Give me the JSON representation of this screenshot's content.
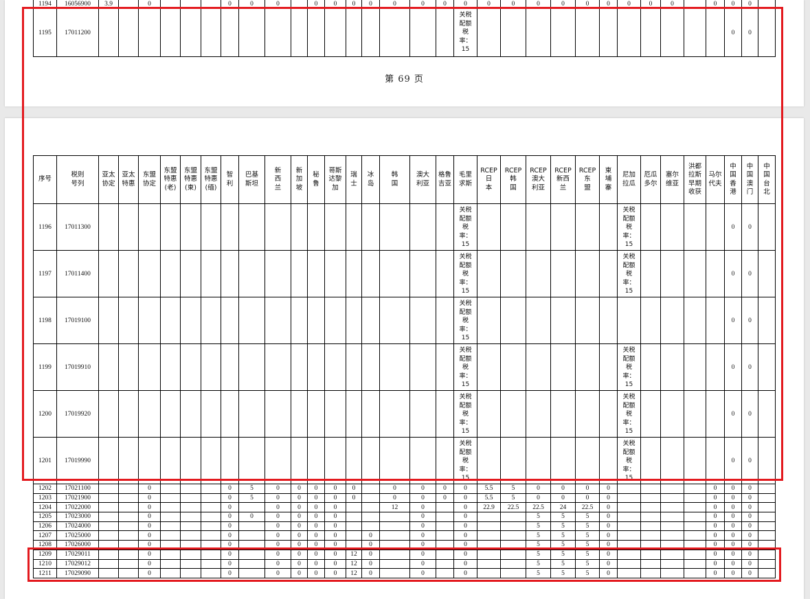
{
  "page_footer": "第 69 页",
  "columns": [
    "序号",
    "税则\n号列",
    "亚太\n协定",
    "亚太\n特惠",
    "东盟\n协定",
    "东盟\n特惠\n(老)",
    "东盟\n特惠\n(柬)",
    "东盟\n特惠\n(缅)",
    "智\n利",
    "巴基\n斯坦",
    "新\n西\n兰",
    "新\n加\n坡",
    "秘\n鲁",
    "哥斯\n达黎\n加",
    "瑞\n士",
    "冰\n岛",
    "韩\n国",
    "澳大\n利亚",
    "格鲁\n吉亚",
    "毛里\n求斯",
    "RCEP\n日\n本",
    "RCEP\n韩\n国",
    "RCEP\n澳大\n利亚",
    "RCEP\n新西\n兰",
    "RCEP\n东\n盟",
    "柬\n埔\n寨",
    "尼加\n拉瓜",
    "厄瓜\n多尔",
    "塞尔\n维亚",
    "洪都\n拉斯\n早期\n收获",
    "马尔\n代夫",
    "中\n国\n香\n港",
    "中\n国\n澳\n门",
    "中\n国\n台\n北"
  ],
  "page1_rows": [
    [
      "1194",
      "16056900",
      "3.9",
      "",
      "0",
      "",
      "",
      "",
      "0",
      "0",
      "0",
      "",
      "0",
      "0",
      "0",
      "0",
      "0",
      "0",
      "0",
      "0",
      "0",
      "0",
      "0",
      "0",
      "0",
      "0",
      "0",
      "0",
      "0",
      "",
      "0",
      "0",
      "0",
      ""
    ],
    [
      "1195",
      "17011200",
      "",
      "",
      "",
      "",
      "",
      "",
      "",
      "",
      "",
      "",
      "",
      "",
      "",
      "",
      "",
      "",
      "",
      "关税\n配额\n税\n率：\n15",
      "",
      "",
      "",
      "",
      "",
      "",
      "",
      "",
      "",
      "",
      "",
      "0",
      "0",
      ""
    ]
  ],
  "page2_rows": [
    [
      "1196",
      "17011300",
      "",
      "",
      "",
      "",
      "",
      "",
      "",
      "",
      "",
      "",
      "",
      "",
      "",
      "",
      "",
      "",
      "",
      "关税\n配额\n税\n率：\n15",
      "",
      "",
      "",
      "",
      "",
      "",
      "关税\n配额\n税\n率：\n15",
      "",
      "",
      "",
      "",
      "0",
      "0",
      ""
    ],
    [
      "1197",
      "17011400",
      "",
      "",
      "",
      "",
      "",
      "",
      "",
      "",
      "",
      "",
      "",
      "",
      "",
      "",
      "",
      "",
      "",
      "关税\n配额\n税\n率：\n15",
      "",
      "",
      "",
      "",
      "",
      "",
      "关税\n配额\n税\n率：\n15",
      "",
      "",
      "",
      "",
      "0",
      "0",
      ""
    ],
    [
      "1198",
      "17019100",
      "",
      "",
      "",
      "",
      "",
      "",
      "",
      "",
      "",
      "",
      "",
      "",
      "",
      "",
      "",
      "",
      "",
      "关税\n配额\n税\n率：\n15",
      "",
      "",
      "",
      "",
      "",
      "",
      "",
      "",
      "",
      "",
      "",
      "0",
      "0",
      ""
    ],
    [
      "1199",
      "17019910",
      "",
      "",
      "",
      "",
      "",
      "",
      "",
      "",
      "",
      "",
      "",
      "",
      "",
      "",
      "",
      "",
      "",
      "关税\n配额\n税\n率：\n15",
      "",
      "",
      "",
      "",
      "",
      "",
      "关税\n配额\n税\n率：\n15",
      "",
      "",
      "",
      "",
      "0",
      "0",
      ""
    ],
    [
      "1200",
      "17019920",
      "",
      "",
      "",
      "",
      "",
      "",
      "",
      "",
      "",
      "",
      "",
      "",
      "",
      "",
      "",
      "",
      "",
      "关税\n配额\n税\n率：\n15",
      "",
      "",
      "",
      "",
      "",
      "",
      "关税\n配额\n税\n率：\n15",
      "",
      "",
      "",
      "",
      "0",
      "0",
      ""
    ],
    [
      "1201",
      "17019990",
      "",
      "",
      "",
      "",
      "",
      "",
      "",
      "",
      "",
      "",
      "",
      "",
      "",
      "",
      "",
      "",
      "",
      "关税\n配额\n税\n率：\n15",
      "",
      "",
      "",
      "",
      "",
      "",
      "关税\n配额\n税\n率：\n15",
      "",
      "",
      "",
      "",
      "0",
      "0",
      ""
    ],
    [
      "1202",
      "17021100",
      "",
      "",
      "0",
      "",
      "",
      "",
      "0",
      "5",
      "0",
      "0",
      "0",
      "0",
      "0",
      "",
      "0",
      "0",
      "0",
      "0",
      "5.5",
      "5",
      "0",
      "0",
      "0",
      "0",
      "",
      "",
      "",
      "",
      "0",
      "0",
      "0",
      ""
    ],
    [
      "1203",
      "17021900",
      "",
      "",
      "0",
      "",
      "",
      "",
      "0",
      "5",
      "0",
      "0",
      "0",
      "0",
      "0",
      "",
      "0",
      "0",
      "0",
      "0",
      "5.5",
      "5",
      "0",
      "0",
      "0",
      "0",
      "",
      "",
      "",
      "",
      "0",
      "0",
      "0",
      ""
    ],
    [
      "1204",
      "17022000",
      "",
      "",
      "0",
      "",
      "",
      "",
      "0",
      "",
      "0",
      "0",
      "0",
      "0",
      "",
      "",
      "12",
      "0",
      "",
      "0",
      "22.9",
      "22.5",
      "22.5",
      "24",
      "22.5",
      "0",
      "",
      "",
      "",
      "",
      "0",
      "0",
      "0",
      ""
    ],
    [
      "1205",
      "17023000",
      "",
      "",
      "0",
      "",
      "",
      "",
      "0",
      "0",
      "0",
      "0",
      "0",
      "0",
      "",
      "",
      "",
      "0",
      "",
      "0",
      "",
      "",
      "5",
      "5",
      "5",
      "0",
      "",
      "",
      "",
      "",
      "0",
      "0",
      "0",
      ""
    ],
    [
      "1206",
      "17024000",
      "",
      "",
      "0",
      "",
      "",
      "",
      "0",
      "",
      "0",
      "0",
      "0",
      "0",
      "",
      "",
      "",
      "0",
      "",
      "0",
      "",
      "",
      "5",
      "5",
      "5",
      "0",
      "",
      "",
      "",
      "",
      "0",
      "0",
      "0",
      ""
    ],
    [
      "1207",
      "17025000",
      "",
      "",
      "0",
      "",
      "",
      "",
      "0",
      "",
      "0",
      "0",
      "0",
      "0",
      "",
      "0",
      "",
      "0",
      "",
      "0",
      "",
      "",
      "5",
      "5",
      "5",
      "0",
      "",
      "",
      "",
      "",
      "0",
      "0",
      "0",
      ""
    ],
    [
      "1208",
      "17026000",
      "",
      "",
      "0",
      "",
      "",
      "",
      "0",
      "",
      "0",
      "0",
      "0",
      "0",
      "",
      "0",
      "",
      "0",
      "",
      "0",
      "",
      "",
      "5",
      "5",
      "5",
      "0",
      "",
      "",
      "",
      "",
      "0",
      "0",
      "0",
      ""
    ],
    [
      "1209",
      "17029011",
      "",
      "",
      "0",
      "",
      "",
      "",
      "0",
      "",
      "0",
      "0",
      "0",
      "0",
      "12",
      "0",
      "",
      "0",
      "",
      "0",
      "",
      "",
      "5",
      "5",
      "5",
      "0",
      "",
      "",
      "",
      "",
      "0",
      "0",
      "0",
      ""
    ],
    [
      "1210",
      "17029012",
      "",
      "",
      "0",
      "",
      "",
      "",
      "0",
      "",
      "0",
      "0",
      "0",
      "0",
      "12",
      "0",
      "",
      "0",
      "",
      "0",
      "",
      "",
      "5",
      "5",
      "5",
      "0",
      "",
      "",
      "",
      "",
      "0",
      "0",
      "0",
      ""
    ],
    [
      "1211",
      "17029090",
      "",
      "",
      "0",
      "",
      "",
      "",
      "0",
      "",
      "0",
      "0",
      "0",
      "0",
      "12",
      "0",
      "",
      "0",
      "",
      "0",
      "",
      "",
      "5",
      "5",
      "5",
      "0",
      "",
      "",
      "",
      "",
      "0",
      "0",
      "0",
      ""
    ]
  ],
  "highlight_color": "#e3191e"
}
